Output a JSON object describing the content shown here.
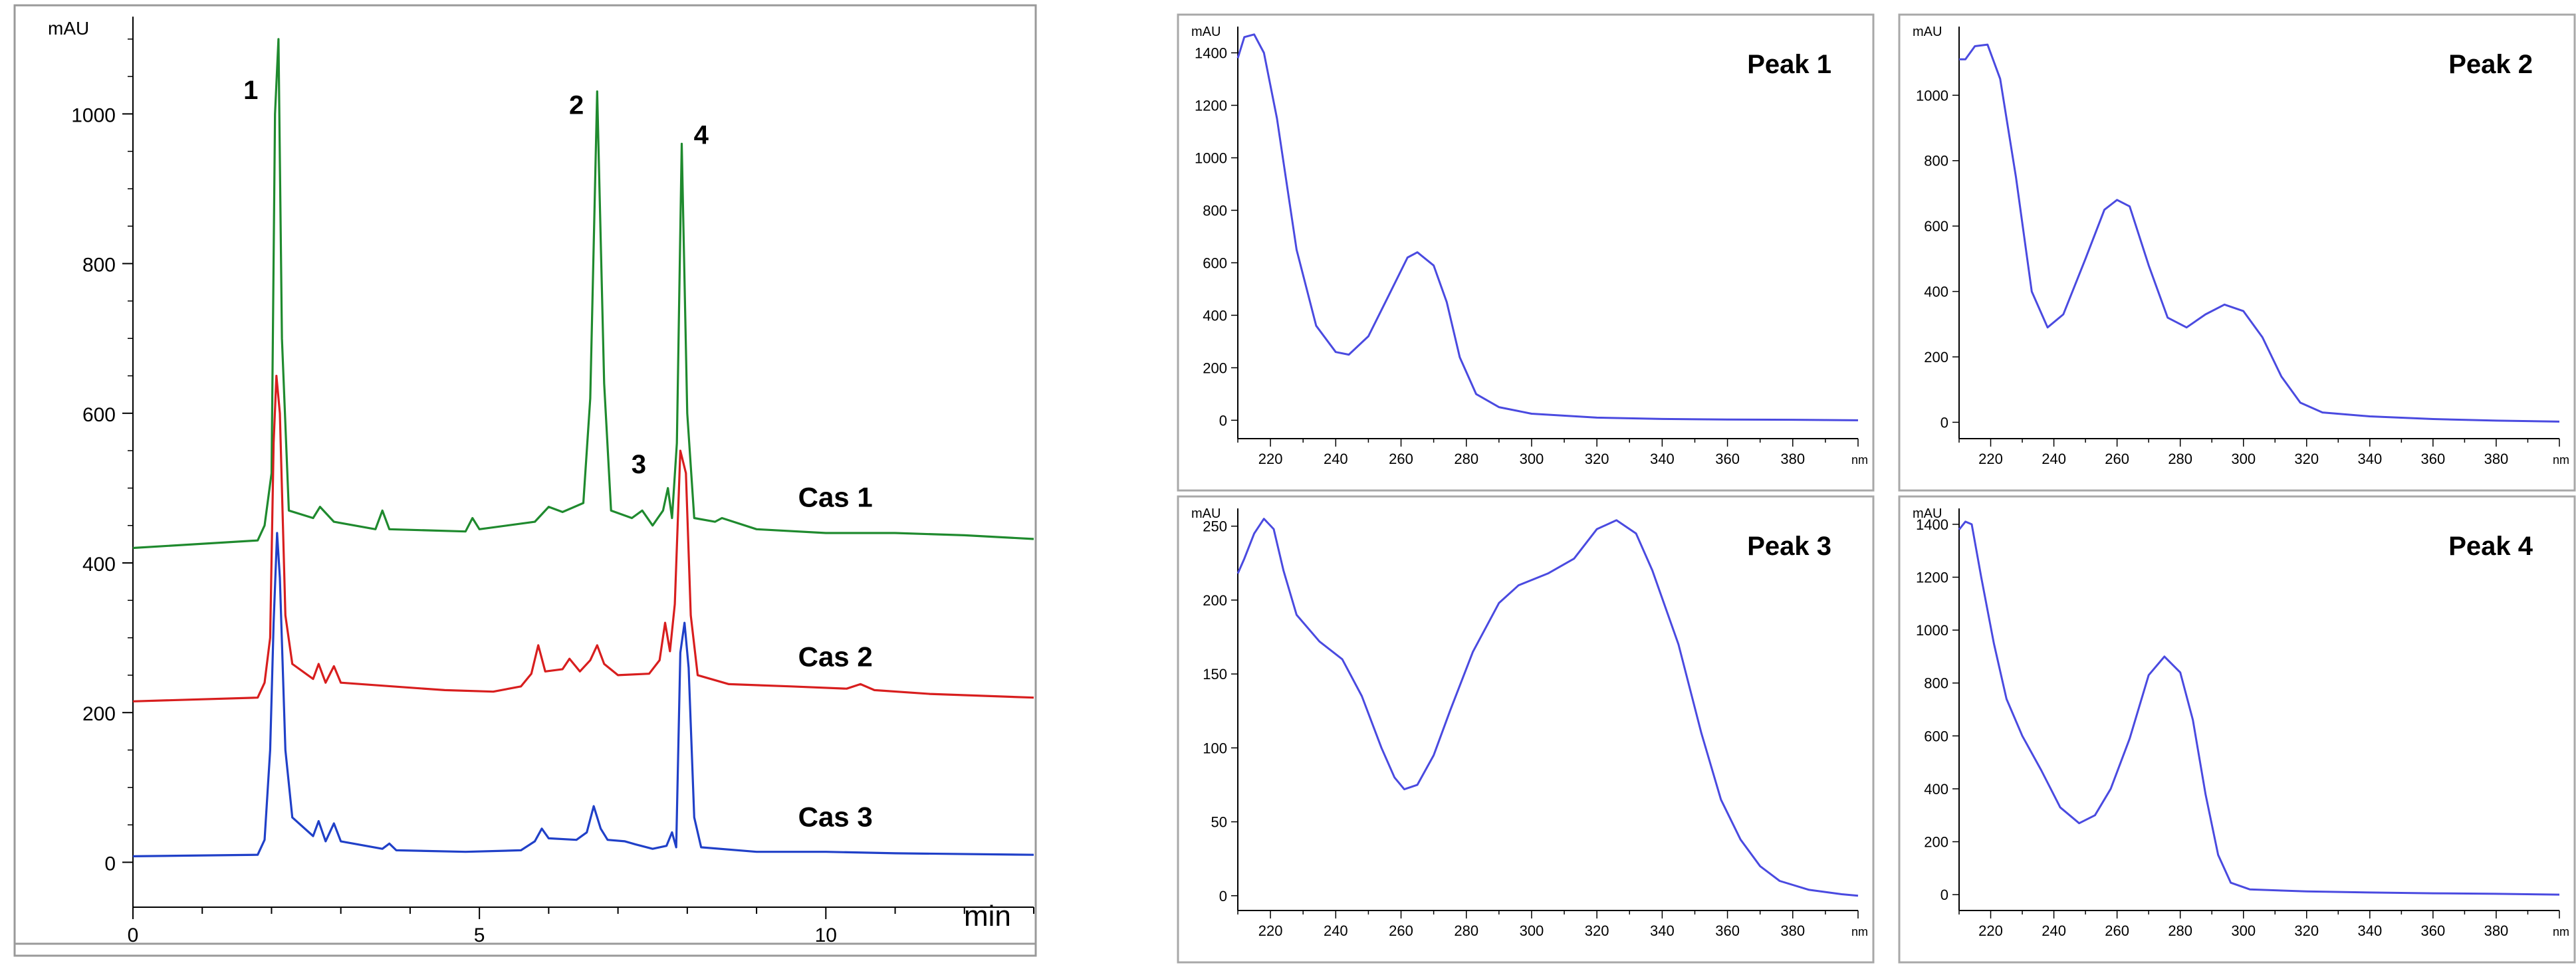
{
  "chart_data": [
    {
      "type": "line",
      "ylabel": "mAU",
      "xunit": "min",
      "xlim": [
        0,
        13
      ],
      "ylim": [
        -60,
        1130
      ],
      "x_ticks": [
        0,
        5,
        10
      ],
      "y_ticks": [
        0,
        200,
        400,
        600,
        800,
        1000
      ],
      "grid": false,
      "legend": "inline labels at right of traces",
      "peak_labels": [
        {
          "text": "1",
          "x": 1.7,
          "y": 1020
        },
        {
          "text": "2",
          "x": 6.4,
          "y": 1000
        },
        {
          "text": "3",
          "x": 7.3,
          "y": 520
        },
        {
          "text": "4",
          "x": 8.2,
          "y": 960
        }
      ],
      "series": [
        {
          "name": "Cas 1",
          "color": "#1f8a2e",
          "label_x": 9.6,
          "label_y": 475,
          "points": [
            [
              0,
              420
            ],
            [
              1.8,
              430
            ],
            [
              1.9,
              450
            ],
            [
              2.0,
              520
            ],
            [
              2.05,
              1000
            ],
            [
              2.1,
              1100
            ],
            [
              2.15,
              700
            ],
            [
              2.25,
              470
            ],
            [
              2.6,
              460
            ],
            [
              2.7,
              475
            ],
            [
              2.9,
              455
            ],
            [
              3.5,
              445
            ],
            [
              3.6,
              470
            ],
            [
              3.7,
              445
            ],
            [
              4.8,
              442
            ],
            [
              4.9,
              460
            ],
            [
              5.0,
              445
            ],
            [
              5.8,
              455
            ],
            [
              6.0,
              475
            ],
            [
              6.2,
              468
            ],
            [
              6.5,
              480
            ],
            [
              6.6,
              620
            ],
            [
              6.7,
              1030
            ],
            [
              6.8,
              640
            ],
            [
              6.9,
              470
            ],
            [
              7.2,
              460
            ],
            [
              7.35,
              470
            ],
            [
              7.5,
              450
            ],
            [
              7.65,
              470
            ],
            [
              7.72,
              500
            ],
            [
              7.78,
              460
            ],
            [
              7.85,
              560
            ],
            [
              7.92,
              960
            ],
            [
              8.0,
              600
            ],
            [
              8.1,
              460
            ],
            [
              8.4,
              455
            ],
            [
              8.5,
              460
            ],
            [
              9.0,
              445
            ],
            [
              10.0,
              440
            ],
            [
              11.0,
              440
            ],
            [
              12.0,
              437
            ],
            [
              13.0,
              432
            ]
          ]
        },
        {
          "name": "Cas 2",
          "color": "#d81e1e",
          "label_x": 9.6,
          "label_y": 262,
          "points": [
            [
              0,
              215
            ],
            [
              1.8,
              220
            ],
            [
              1.9,
              240
            ],
            [
              1.98,
              300
            ],
            [
              2.03,
              560
            ],
            [
              2.07,
              650
            ],
            [
              2.12,
              600
            ],
            [
              2.2,
              330
            ],
            [
              2.3,
              265
            ],
            [
              2.6,
              245
            ],
            [
              2.68,
              265
            ],
            [
              2.78,
              240
            ],
            [
              2.9,
              262
            ],
            [
              3.0,
              240
            ],
            [
              3.6,
              236
            ],
            [
              4.5,
              230
            ],
            [
              5.2,
              228
            ],
            [
              5.6,
              235
            ],
            [
              5.75,
              252
            ],
            [
              5.85,
              290
            ],
            [
              5.95,
              255
            ],
            [
              6.2,
              258
            ],
            [
              6.3,
              272
            ],
            [
              6.45,
              255
            ],
            [
              6.6,
              270
            ],
            [
              6.7,
              290
            ],
            [
              6.8,
              265
            ],
            [
              7.0,
              250
            ],
            [
              7.45,
              252
            ],
            [
              7.6,
              270
            ],
            [
              7.68,
              320
            ],
            [
              7.75,
              282
            ],
            [
              7.82,
              345
            ],
            [
              7.9,
              550
            ],
            [
              7.98,
              520
            ],
            [
              8.05,
              330
            ],
            [
              8.15,
              250
            ],
            [
              8.6,
              238
            ],
            [
              9.5,
              235
            ],
            [
              10.3,
              232
            ],
            [
              10.5,
              238
            ],
            [
              10.7,
              230
            ],
            [
              11.5,
              225
            ],
            [
              13.0,
              220
            ]
          ]
        },
        {
          "name": "Cas 3",
          "color": "#2040c8",
          "label_x": 9.6,
          "label_y": 48,
          "points": [
            [
              0,
              8
            ],
            [
              1.8,
              10
            ],
            [
              1.9,
              30
            ],
            [
              1.98,
              150
            ],
            [
              2.03,
              320
            ],
            [
              2.08,
              440
            ],
            [
              2.12,
              380
            ],
            [
              2.2,
              150
            ],
            [
              2.3,
              60
            ],
            [
              2.6,
              35
            ],
            [
              2.68,
              55
            ],
            [
              2.78,
              28
            ],
            [
              2.9,
              52
            ],
            [
              3.0,
              28
            ],
            [
              3.6,
              18
            ],
            [
              3.7,
              25
            ],
            [
              3.8,
              16
            ],
            [
              4.8,
              14
            ],
            [
              5.6,
              16
            ],
            [
              5.8,
              28
            ],
            [
              5.9,
              45
            ],
            [
              6.0,
              32
            ],
            [
              6.4,
              30
            ],
            [
              6.55,
              40
            ],
            [
              6.65,
              75
            ],
            [
              6.75,
              45
            ],
            [
              6.85,
              30
            ],
            [
              7.1,
              28
            ],
            [
              7.25,
              24
            ],
            [
              7.5,
              18
            ],
            [
              7.7,
              22
            ],
            [
              7.78,
              40
            ],
            [
              7.84,
              20
            ],
            [
              7.9,
              280
            ],
            [
              7.96,
              320
            ],
            [
              8.02,
              260
            ],
            [
              8.1,
              60
            ],
            [
              8.2,
              20
            ],
            [
              9.0,
              14
            ],
            [
              10.0,
              14
            ],
            [
              11.0,
              12
            ],
            [
              13.0,
              10
            ]
          ]
        }
      ]
    },
    {
      "type": "line",
      "title": "Peak 1",
      "ylabel": "mAU",
      "xunit": "nm",
      "xlim": [
        210,
        400
      ],
      "ylim": [
        -70,
        1500
      ],
      "x_ticks": [
        220,
        240,
        260,
        280,
        300,
        320,
        340,
        360,
        380
      ],
      "y_ticks": [
        0,
        200,
        400,
        600,
        800,
        1000,
        1200,
        1400
      ],
      "color": "#4a4ae0",
      "points": [
        [
          210,
          1380
        ],
        [
          212,
          1460
        ],
        [
          215,
          1470
        ],
        [
          218,
          1400
        ],
        [
          222,
          1150
        ],
        [
          228,
          650
        ],
        [
          234,
          360
        ],
        [
          240,
          260
        ],
        [
          244,
          250
        ],
        [
          250,
          320
        ],
        [
          256,
          470
        ],
        [
          262,
          620
        ],
        [
          265,
          640
        ],
        [
          270,
          590
        ],
        [
          274,
          450
        ],
        [
          278,
          240
        ],
        [
          283,
          100
        ],
        [
          290,
          50
        ],
        [
          300,
          25
        ],
        [
          320,
          10
        ],
        [
          340,
          5
        ],
        [
          360,
          3
        ],
        [
          380,
          2
        ],
        [
          400,
          0
        ]
      ]
    },
    {
      "type": "line",
      "title": "Peak 2",
      "ylabel": "mAU",
      "xunit": "nm",
      "xlim": [
        210,
        400
      ],
      "ylim": [
        -50,
        1210
      ],
      "x_ticks": [
        220,
        240,
        260,
        280,
        300,
        320,
        340,
        360,
        380
      ],
      "y_ticks": [
        0,
        200,
        400,
        600,
        800,
        1000
      ],
      "color": "#4a4ae0",
      "points": [
        [
          210,
          1110
        ],
        [
          212,
          1110
        ],
        [
          215,
          1150
        ],
        [
          219,
          1155
        ],
        [
          223,
          1050
        ],
        [
          228,
          750
        ],
        [
          233,
          400
        ],
        [
          238,
          290
        ],
        [
          243,
          330
        ],
        [
          250,
          500
        ],
        [
          256,
          650
        ],
        [
          260,
          680
        ],
        [
          264,
          660
        ],
        [
          270,
          480
        ],
        [
          276,
          320
        ],
        [
          282,
          290
        ],
        [
          288,
          330
        ],
        [
          294,
          360
        ],
        [
          300,
          340
        ],
        [
          306,
          260
        ],
        [
          312,
          140
        ],
        [
          318,
          60
        ],
        [
          325,
          30
        ],
        [
          340,
          18
        ],
        [
          360,
          10
        ],
        [
          380,
          5
        ],
        [
          400,
          2
        ]
      ]
    },
    {
      "type": "line",
      "title": "Peak 3",
      "ylabel": "mAU",
      "xunit": "nm",
      "xlim": [
        210,
        400
      ],
      "ylim": [
        -10,
        262
      ],
      "x_ticks": [
        220,
        240,
        260,
        280,
        300,
        320,
        340,
        360,
        380
      ],
      "y_ticks": [
        0,
        50,
        100,
        150,
        200,
        250
      ],
      "color": "#4a4ae0",
      "points": [
        [
          210,
          218
        ],
        [
          212,
          228
        ],
        [
          215,
          245
        ],
        [
          218,
          255
        ],
        [
          221,
          248
        ],
        [
          224,
          220
        ],
        [
          228,
          190
        ],
        [
          235,
          172
        ],
        [
          242,
          160
        ],
        [
          248,
          135
        ],
        [
          254,
          100
        ],
        [
          258,
          80
        ],
        [
          261,
          72
        ],
        [
          265,
          75
        ],
        [
          270,
          95
        ],
        [
          275,
          125
        ],
        [
          282,
          165
        ],
        [
          290,
          198
        ],
        [
          296,
          210
        ],
        [
          305,
          218
        ],
        [
          313,
          228
        ],
        [
          320,
          248
        ],
        [
          326,
          254
        ],
        [
          332,
          245
        ],
        [
          337,
          220
        ],
        [
          345,
          170
        ],
        [
          352,
          110
        ],
        [
          358,
          65
        ],
        [
          364,
          38
        ],
        [
          370,
          20
        ],
        [
          376,
          10
        ],
        [
          385,
          4
        ],
        [
          395,
          1
        ],
        [
          400,
          0
        ]
      ]
    },
    {
      "type": "line",
      "title": "Peak 4",
      "ylabel": "mAU",
      "xunit": "nm",
      "xlim": [
        210,
        400
      ],
      "ylim": [
        -60,
        1460
      ],
      "x_ticks": [
        220,
        240,
        260,
        280,
        300,
        320,
        340,
        360,
        380
      ],
      "y_ticks": [
        0,
        200,
        400,
        600,
        800,
        1000,
        1200,
        1400
      ],
      "color": "#4a4ae0",
      "points": [
        [
          210,
          1380
        ],
        [
          212,
          1410
        ],
        [
          214,
          1400
        ],
        [
          217,
          1200
        ],
        [
          221,
          950
        ],
        [
          225,
          740
        ],
        [
          230,
          600
        ],
        [
          236,
          470
        ],
        [
          242,
          330
        ],
        [
          248,
          270
        ],
        [
          253,
          300
        ],
        [
          258,
          400
        ],
        [
          264,
          590
        ],
        [
          270,
          830
        ],
        [
          275,
          900
        ],
        [
          280,
          840
        ],
        [
          284,
          660
        ],
        [
          288,
          380
        ],
        [
          292,
          150
        ],
        [
          296,
          45
        ],
        [
          302,
          20
        ],
        [
          320,
          12
        ],
        [
          340,
          8
        ],
        [
          360,
          5
        ],
        [
          380,
          3
        ],
        [
          400,
          0
        ]
      ]
    }
  ]
}
